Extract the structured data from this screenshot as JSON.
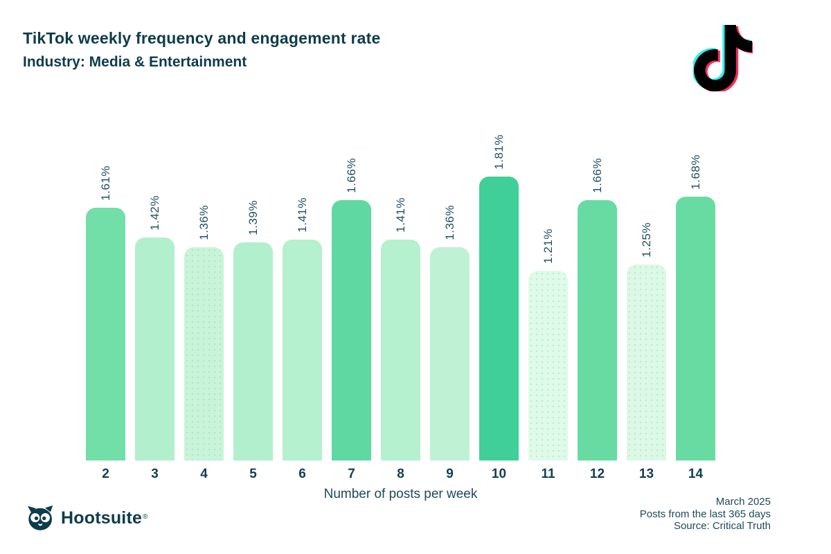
{
  "header": {
    "title": "TikTok weekly frequency and engagement rate",
    "subtitle": "Industry: Media & Entertainment"
  },
  "chart_data": {
    "type": "bar",
    "title": "TikTok weekly frequency and engagement rate",
    "subtitle": "Industry: Media & Entertainment",
    "xlabel": "Number of posts per week",
    "ylabel": "",
    "categories": [
      "2",
      "3",
      "4",
      "5",
      "6",
      "7",
      "8",
      "9",
      "10",
      "11",
      "12",
      "13",
      "14"
    ],
    "values": [
      1.61,
      1.42,
      1.36,
      1.39,
      1.41,
      1.66,
      1.41,
      1.36,
      1.81,
      1.21,
      1.66,
      1.25,
      1.68
    ],
    "labels": [
      "1.61%",
      "1.42%",
      "1.36%",
      "1.39%",
      "1.41%",
      "1.66%",
      "1.41%",
      "1.36%",
      "1.81%",
      "1.21%",
      "1.66%",
      "1.25%",
      "1.68%"
    ],
    "bar_colors": [
      "#72dfa8",
      "#b2efcd",
      "#c9f4da",
      "#b2efcd",
      "#b5f0cf",
      "#5fd9a1",
      "#b5f0cf",
      "#bff2d4",
      "#40cf99",
      "#dffae9",
      "#68dba3",
      "#dcf8e6",
      "#68dba3"
    ],
    "dotted": [
      false,
      false,
      true,
      false,
      false,
      false,
      false,
      false,
      false,
      true,
      false,
      true,
      false
    ],
    "ylim": [
      0,
      1.9
    ],
    "grid": false,
    "legend_position": "none"
  },
  "footer": {
    "brand": "Hootsuite",
    "brand_reg": "®",
    "date": "March 2025",
    "range": "Posts from the last 365 days",
    "source": "Source: Critical Truth"
  },
  "icons": {
    "tiktok_logo": "tiktok-note-icon",
    "hootsuite_owl": "owl-icon"
  },
  "colors": {
    "text_dark_teal": "#0d3c4b",
    "label_teal": "#215062",
    "bar_darkest": "#40cf99",
    "bar_medium": "#68dba3",
    "bar_light": "#b2efcd",
    "bar_lightest": "#dffae9",
    "tiktok_cyan": "#25f4ee",
    "tiktok_red": "#fe2c55",
    "tiktok_black": "#010101"
  }
}
